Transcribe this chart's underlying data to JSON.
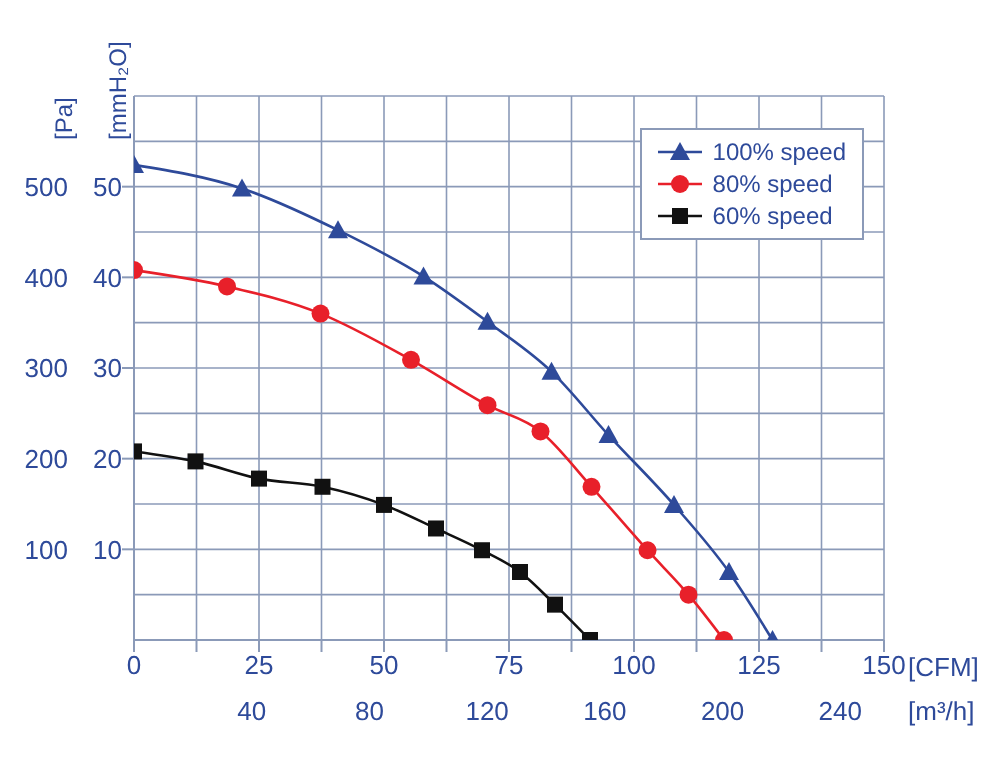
{
  "chart_data": {
    "type": "line",
    "xlabel": "[CFM]",
    "x2label": "[m³/h]",
    "ylabel": "[Pa]",
    "y2label": "[mmH₂O]",
    "xlim": [
      0,
      150
    ],
    "xticks": [
      0,
      {
        "value": 12.5,
        "label": null
      },
      25,
      {
        "value": 37.5,
        "label": null
      },
      50,
      {
        "value": 62.5,
        "label": null
      },
      75,
      {
        "value": 87.5,
        "label": null
      },
      100,
      {
        "value": 112.5,
        "label": null
      },
      125,
      {
        "value": 137.5,
        "label": null
      },
      150
    ],
    "x2lim": [
      0,
      254.85
    ],
    "x2ticks": [
      40,
      80,
      120,
      160,
      200,
      240
    ],
    "ylim": [
      0,
      600
    ],
    "yticks": [
      {
        "value": 0,
        "label": null
      },
      {
        "value": 50,
        "label": null
      },
      100,
      {
        "value": 150,
        "label": null
      },
      200,
      {
        "value": 250,
        "label": null
      },
      300,
      {
        "value": 350,
        "label": null
      },
      400,
      {
        "value": 450,
        "label": null
      },
      500,
      {
        "value": 550,
        "label": null
      },
      {
        "value": 600,
        "label": null
      }
    ],
    "y2lim": [
      0,
      60
    ],
    "y2ticks": [
      10,
      20,
      30,
      40,
      50
    ],
    "grid": true,
    "legend": "top right",
    "series": [
      {
        "name": "100% speed",
        "color": "#2e4a9a",
        "marker": "triangle",
        "x": [
          0,
          21.6,
          40.8,
          57.9,
          70.7,
          83.5,
          94.9,
          108,
          119,
          127.7
        ],
        "values": [
          524,
          498,
          452,
          401,
          351,
          296,
          226,
          149,
          75,
          0
        ]
      },
      {
        "name": "80% speed",
        "color": "#e8202a",
        "marker": "circle",
        "x": [
          0,
          18.6,
          37.3,
          55.4,
          70.7,
          81.3,
          91.5,
          102.7,
          110.9,
          118
        ],
        "values": [
          408,
          390,
          360,
          309,
          259,
          230,
          169,
          99,
          50,
          0
        ]
      },
      {
        "name": "60% speed",
        "color": "#111111",
        "marker": "square",
        "x": [
          0,
          12.3,
          25,
          37.7,
          50,
          60.4,
          69.6,
          77.2,
          84.2,
          91.2
        ],
        "values": [
          208,
          197,
          178,
          169,
          149,
          123,
          99,
          75,
          39,
          0
        ]
      }
    ]
  }
}
